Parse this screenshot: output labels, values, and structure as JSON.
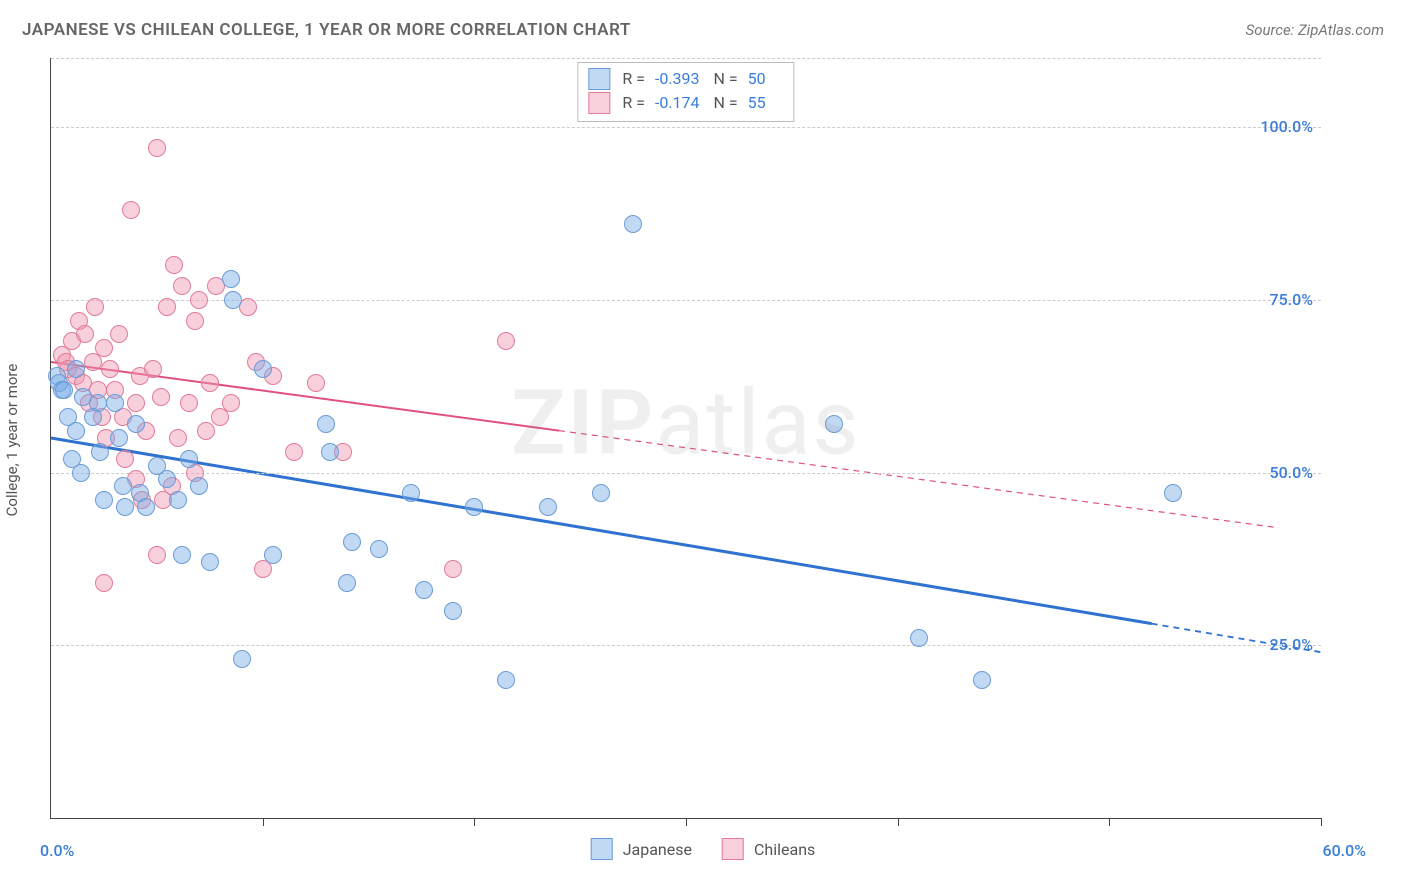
{
  "header": {
    "title": "JAPANESE VS CHILEAN COLLEGE, 1 YEAR OR MORE CORRELATION CHART",
    "source": "Source: ZipAtlas.com"
  },
  "chart": {
    "type": "scatter",
    "ylabel": "College, 1 year or more",
    "background_color": "#ffffff",
    "grid_color": "#cccccc",
    "axis_color": "#444444",
    "fontsize_title": 17,
    "fontsize_source": 15,
    "fontsize_ylabel": 15,
    "fontsize_tick": 16,
    "fontsize_legend": 16,
    "watermark": "ZIPatlas",
    "xlim": [
      0,
      60
    ],
    "ylim": [
      0,
      110
    ],
    "ytick_positions": [
      25,
      50,
      75,
      100,
      110
    ],
    "ytick_labels": [
      "25.0%",
      "50.0%",
      "75.0%",
      "100.0%",
      ""
    ],
    "xtick_positions": [
      0,
      10,
      20,
      30,
      40,
      50,
      60
    ],
    "xaxis_start_label": "0.0%",
    "xaxis_end_label": "60.0%",
    "point_radius": 9,
    "point_border_width": 1,
    "series": {
      "japanese": {
        "label": "Japanese",
        "fill": "rgba(120,170,230,0.45)",
        "stroke": "#6a9cd6",
        "R": "-0.393",
        "N": "50",
        "trend": {
          "x1": 0,
          "y1": 55,
          "x2": 60,
          "y2": 24,
          "solid_until_x": 52,
          "stroke": "#2f72d0",
          "width": 3
        },
        "points": [
          [
            0.3,
            64
          ],
          [
            0.4,
            63
          ],
          [
            0.5,
            62
          ],
          [
            0.6,
            62
          ],
          [
            0.8,
            58
          ],
          [
            1.0,
            52
          ],
          [
            1.2,
            65
          ],
          [
            1.2,
            56
          ],
          [
            1.4,
            50
          ],
          [
            1.5,
            61
          ],
          [
            2.0,
            58
          ],
          [
            2.2,
            60
          ],
          [
            2.3,
            53
          ],
          [
            2.5,
            46
          ],
          [
            3.0,
            60
          ],
          [
            3.2,
            55
          ],
          [
            3.4,
            48
          ],
          [
            3.5,
            45
          ],
          [
            4.0,
            57
          ],
          [
            4.2,
            47
          ],
          [
            4.5,
            45
          ],
          [
            5.0,
            51
          ],
          [
            5.5,
            49
          ],
          [
            6.0,
            46
          ],
          [
            6.2,
            38
          ],
          [
            6.5,
            52
          ],
          [
            7.0,
            48
          ],
          [
            7.5,
            37
          ],
          [
            8.5,
            78
          ],
          [
            8.6,
            75
          ],
          [
            9.0,
            23
          ],
          [
            10.0,
            65
          ],
          [
            10.5,
            38
          ],
          [
            13.0,
            57
          ],
          [
            13.2,
            53
          ],
          [
            14.0,
            34
          ],
          [
            14.2,
            40
          ],
          [
            15.5,
            39
          ],
          [
            17.0,
            47
          ],
          [
            17.6,
            33
          ],
          [
            19.0,
            30
          ],
          [
            20.0,
            45
          ],
          [
            21.5,
            20
          ],
          [
            23.5,
            45
          ],
          [
            26.0,
            47
          ],
          [
            27.5,
            86
          ],
          [
            37.0,
            57
          ],
          [
            41.0,
            26
          ],
          [
            44.0,
            20
          ],
          [
            53.0,
            47
          ]
        ]
      },
      "chileans": {
        "label": "Chileans",
        "fill": "rgba(240,150,175,0.45)",
        "stroke": "#e27b9a",
        "R": "-0.174",
        "N": "55",
        "trend": {
          "x1": 0,
          "y1": 66,
          "x2": 58,
          "y2": 42,
          "solid_until_x": 24,
          "stroke": "#e0517e",
          "width": 2
        },
        "points": [
          [
            0.5,
            67
          ],
          [
            0.7,
            66
          ],
          [
            0.8,
            65
          ],
          [
            1.0,
            69
          ],
          [
            1.2,
            64
          ],
          [
            1.3,
            72
          ],
          [
            1.5,
            63
          ],
          [
            1.6,
            70
          ],
          [
            1.8,
            60
          ],
          [
            2.0,
            66
          ],
          [
            2.1,
            74
          ],
          [
            2.2,
            62
          ],
          [
            2.4,
            58
          ],
          [
            2.5,
            68
          ],
          [
            2.6,
            55
          ],
          [
            2.8,
            65
          ],
          [
            3.0,
            62
          ],
          [
            3.2,
            70
          ],
          [
            3.4,
            58
          ],
          [
            3.5,
            52
          ],
          [
            3.8,
            88
          ],
          [
            4.0,
            60
          ],
          [
            4.2,
            64
          ],
          [
            4.5,
            56
          ],
          [
            4.8,
            65
          ],
          [
            5.0,
            97
          ],
          [
            5.2,
            61
          ],
          [
            5.5,
            74
          ],
          [
            5.8,
            80
          ],
          [
            6.0,
            55
          ],
          [
            6.2,
            77
          ],
          [
            6.5,
            60
          ],
          [
            6.8,
            72
          ],
          [
            7.0,
            75
          ],
          [
            7.3,
            56
          ],
          [
            7.5,
            63
          ],
          [
            7.8,
            77
          ],
          [
            8.0,
            58
          ],
          [
            8.5,
            60
          ],
          [
            9.3,
            74
          ],
          [
            9.7,
            66
          ],
          [
            10.0,
            36
          ],
          [
            10.5,
            64
          ],
          [
            11.5,
            53
          ],
          [
            12.5,
            63
          ],
          [
            2.5,
            34
          ],
          [
            4.0,
            49
          ],
          [
            4.3,
            46
          ],
          [
            5.3,
            46
          ],
          [
            5.0,
            38
          ],
          [
            13.8,
            53
          ],
          [
            19.0,
            36
          ],
          [
            21.5,
            69
          ],
          [
            5.7,
            48
          ],
          [
            6.8,
            50
          ]
        ]
      }
    }
  }
}
